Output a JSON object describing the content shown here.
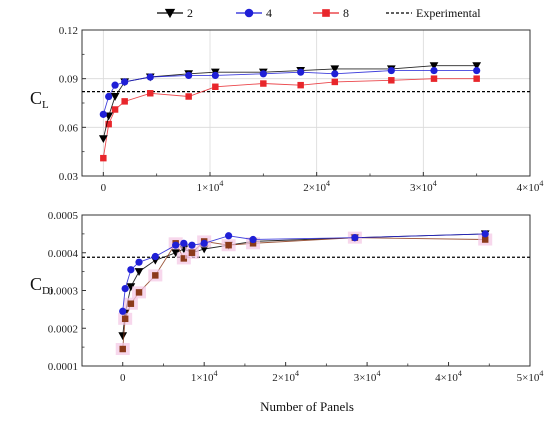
{
  "legend": {
    "position": "top-center",
    "entries": [
      {
        "label": "2",
        "color": "#000000",
        "marker": "triangle-down"
      },
      {
        "label": "4",
        "color": "#1f1fd6",
        "marker": "circle"
      },
      {
        "label": "8",
        "color": "#e8262b",
        "marker": "square"
      },
      {
        "label": "Experimental",
        "color": "#000000",
        "marker": "dashed-line"
      }
    ]
  },
  "xlabel_shared": "Number of Panels",
  "chart_data": [
    {
      "type": "line",
      "ylabel_main": "C",
      "ylabel_sub": "L",
      "xlim": [
        -2000,
        40000
      ],
      "ylim": [
        0.03,
        0.12
      ],
      "xticks": [
        0,
        10000,
        20000,
        30000,
        40000
      ],
      "xtick_labels": [
        {
          "base": "0",
          "exp": ""
        },
        {
          "base": "1×10",
          "exp": "4"
        },
        {
          "base": "2×10",
          "exp": "4"
        },
        {
          "base": "3×10",
          "exp": "4"
        },
        {
          "base": "4×10",
          "exp": "4"
        }
      ],
      "yticks": [
        0.03,
        0.06,
        0.09,
        0.12
      ],
      "ytick_labels": [
        "0.03",
        "0.06",
        "0.09",
        "0.12"
      ],
      "grid": true,
      "experimental": 0.082,
      "series": [
        {
          "name": "2",
          "color": "#000000",
          "marker": "triangle-down",
          "x": [
            0,
            500,
            1100,
            2000,
            4400,
            8000,
            10500,
            15000,
            18500,
            21700,
            27000,
            31000,
            35000
          ],
          "y": [
            0.053,
            0.067,
            0.079,
            0.088,
            0.091,
            0.093,
            0.094,
            0.094,
            0.095,
            0.096,
            0.096,
            0.098,
            0.098
          ]
        },
        {
          "name": "4",
          "color": "#1f1fd6",
          "marker": "circle",
          "x": [
            0,
            500,
            1100,
            2000,
            4400,
            8000,
            10500,
            15000,
            18500,
            21700,
            27000,
            31000,
            35000
          ],
          "y": [
            0.068,
            0.079,
            0.086,
            0.088,
            0.091,
            0.092,
            0.092,
            0.093,
            0.094,
            0.093,
            0.095,
            0.095,
            0.095
          ]
        },
        {
          "name": "8",
          "color": "#e8262b",
          "marker": "square",
          "x": [
            0,
            500,
            1100,
            2000,
            4400,
            8000,
            10500,
            15000,
            18500,
            21700,
            27000,
            31000,
            35000
          ],
          "y": [
            0.041,
            0.062,
            0.071,
            0.076,
            0.081,
            0.079,
            0.085,
            0.087,
            0.086,
            0.088,
            0.089,
            0.09,
            0.09
          ]
        }
      ]
    },
    {
      "type": "line",
      "ylabel_main": "C",
      "ylabel_sub": "Di",
      "xlim": [
        -5000,
        50000
      ],
      "ylim": [
        0.0001,
        0.0005
      ],
      "xticks": [
        0,
        10000,
        20000,
        30000,
        40000,
        50000
      ],
      "xtick_labels": [
        {
          "base": "0",
          "exp": ""
        },
        {
          "base": "1×10",
          "exp": "4"
        },
        {
          "base": "2×10",
          "exp": "4"
        },
        {
          "base": "3×10",
          "exp": "4"
        },
        {
          "base": "4×10",
          "exp": "4"
        },
        {
          "base": "5×10",
          "exp": "4"
        }
      ],
      "yticks": [
        0.0001,
        0.0002,
        0.0003,
        0.0004,
        0.0005
      ],
      "ytick_labels": [
        "0.0001",
        "0.0002",
        "0.0003",
        "0.0004",
        "0.0005"
      ],
      "grid": false,
      "experimental": 0.000388,
      "series": [
        {
          "name": "2",
          "color": "#000000",
          "marker": "triangle-down",
          "x": [
            0,
            300,
            1000,
            2000,
            4000,
            6500,
            7500,
            8500,
            10000,
            13000,
            16000,
            28500,
            44500
          ],
          "y": [
            0.00018,
            0.00024,
            0.00031,
            0.00035,
            0.00038,
            0.0004,
            0.00041,
            0.0004,
            0.00041,
            0.00042,
            0.00043,
            0.00044,
            0.00045
          ]
        },
        {
          "name": "4",
          "color": "#1f1fd6",
          "marker": "circle",
          "x": [
            0,
            300,
            1000,
            2000,
            4000,
            6500,
            7500,
            8500,
            10000,
            13000,
            16000,
            28500,
            44500
          ],
          "y": [
            0.000245,
            0.000305,
            0.000355,
            0.000375,
            0.00039,
            0.00042,
            0.000425,
            0.00042,
            0.000425,
            0.000445,
            0.000435,
            0.00044,
            0.00045
          ]
        },
        {
          "name": "8",
          "color": "#8b3a1a",
          "marker": "square",
          "x": [
            0,
            300,
            1000,
            2000,
            4000,
            6500,
            7500,
            8500,
            10000,
            13000,
            16000,
            28500,
            44500
          ],
          "y": [
            0.000145,
            0.000225,
            0.000265,
            0.000295,
            0.00034,
            0.000425,
            0.000385,
            0.0004,
            0.00043,
            0.00042,
            0.000425,
            0.00044,
            0.000435
          ]
        }
      ]
    }
  ]
}
